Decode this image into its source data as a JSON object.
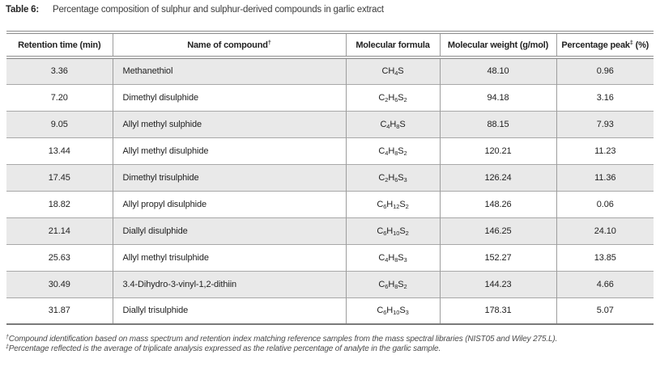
{
  "title": {
    "label": "Table 6:",
    "caption": "Percentage composition of sulphur and sulphur-derived compounds in garlic extract"
  },
  "table": {
    "columns": [
      "Retention time (min)",
      "Name of compound^{†}",
      "Molecular formula",
      "Molecular weight (g/mol)",
      "Percentage peak^{‡} (%)"
    ],
    "rows": [
      {
        "rt": "3.36",
        "name": "Methanethiol",
        "formula": "CH_{4}S",
        "mw": "48.10",
        "pct": "0.96"
      },
      {
        "rt": "7.20",
        "name": "Dimethyl disulphide",
        "formula": "C_{2}H_{6}S_{2}",
        "mw": "94.18",
        "pct": "3.16"
      },
      {
        "rt": "9.05",
        "name": "Allyl methyl sulphide",
        "formula": "C_{4}H_{8}S",
        "mw": "88.15",
        "pct": "7.93"
      },
      {
        "rt": "13.44",
        "name": "Allyl methyl disulphide",
        "formula": "C_{4}H_{8}S_{2}",
        "mw": "120.21",
        "pct": "11.23"
      },
      {
        "rt": "17.45",
        "name": "Dimethyl trisulphide",
        "formula": "C_{2}H_{6}S_{3}",
        "mw": "126.24",
        "pct": "11.36"
      },
      {
        "rt": "18.82",
        "name": "Allyl propyl disulphide",
        "formula": "C_{6}H_{12}S_{2}",
        "mw": "148.26",
        "pct": "0.06"
      },
      {
        "rt": "21.14",
        "name": "Diallyl disulphide",
        "formula": "C_{6}H_{10}S_{2}",
        "mw": "146.25",
        "pct": "24.10"
      },
      {
        "rt": "25.63",
        "name": "Allyl methyl trisulphide",
        "formula": "C_{4}H_{8}S_{3}",
        "mw": "152.27",
        "pct": "13.85"
      },
      {
        "rt": "30.49",
        "name": "3.4-Dihydro-3-vinyl-1,2-dithiin",
        "formula": "C_{6}H_{8}S_{2}",
        "mw": "144.23",
        "pct": "4.66"
      },
      {
        "rt": "31.87",
        "name": "Diallyl trisulphide",
        "formula": "C_{6}H_{10}S_{3}",
        "mw": "178.31",
        "pct": "5.07"
      }
    ]
  },
  "footnotes": [
    "^{†}Compound identification based on mass spectrum and retention index matching reference samples from the mass spectral libraries (NIST05 and Wiley 275.L).",
    "^{‡}Percentage reflected is the average of triplicate analysis expressed as the relative percentage of analyte in the garlic sample."
  ],
  "colors": {
    "row_alt_background": "#e9e9e9",
    "heavy_rule": "#8c8c8c",
    "light_rule": "#a8a8a8",
    "text": "#1f1f1f",
    "footnote_text": "#4a4a4a"
  }
}
